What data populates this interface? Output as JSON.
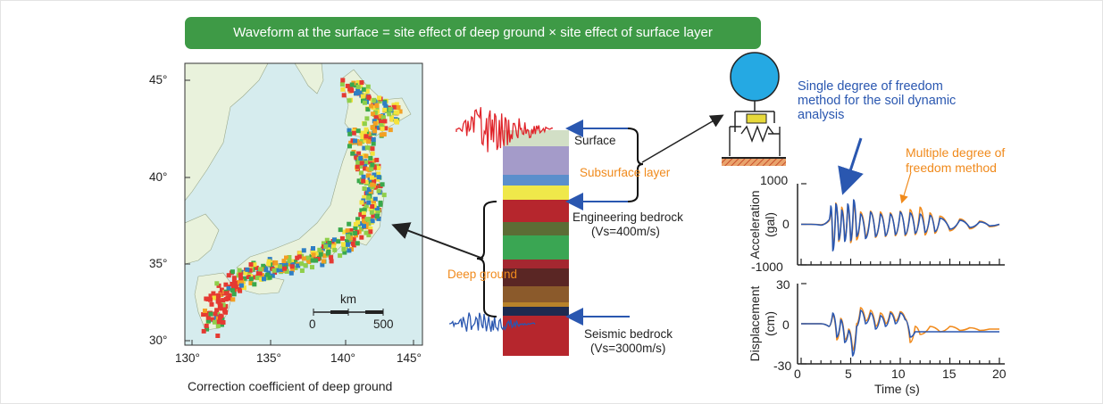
{
  "banner": {
    "text": "Waveform at the surface = site effect of deep ground × site effect of surface layer"
  },
  "map": {
    "lat_ticks": [
      "45°",
      "40°",
      "35°",
      "30°"
    ],
    "lon_ticks": [
      "130°",
      "135°",
      "140°",
      "145°"
    ],
    "scale_unit": "km",
    "scale_min": "0",
    "scale_max": "500",
    "caption": "Correction coefficient of deep ground",
    "colors": {
      "sea": "#d6ecee",
      "land": "#e9f2dc",
      "dot_palette": [
        "#e53a32",
        "#f3a023",
        "#f4e23c",
        "#8fcf4a",
        "#3aa84c",
        "#2f7fc4"
      ]
    }
  },
  "column": {
    "surface_label": "Surface",
    "subsurface_label": "Subsurface layer",
    "engineering_label": "Engineering bedrock",
    "engineering_vs": "(Vs=400m/s)",
    "deep_label": "Deep ground",
    "seismic_label": "Seismic bedrock",
    "seismic_vs": "(Vs=3000m/s)",
    "layer_colors": [
      "#d2dfc6",
      "#a49bc9",
      "#5b8fcc",
      "#efe84a",
      "#b6262d",
      "#5c6d35",
      "#3aa653",
      "#a42730",
      "#5a2624",
      "#8b5a2b",
      "#b8822a",
      "#1d2a50",
      "#b6262d"
    ]
  },
  "sdof": {
    "label": "Single degree of freedom method for the soil dynamic analysis",
    "label_lines": [
      "Single degree of freedom",
      "method for the soil dynamic",
      "analysis"
    ],
    "mdof_lines": [
      "Multiple degree of",
      "freedom method"
    ]
  },
  "accel_plot": {
    "ylabel_lines": [
      "Acceleration",
      "(gal)"
    ],
    "yticks": [
      "1000",
      "0",
      "-1000"
    ]
  },
  "disp_plot": {
    "ylabel_lines": [
      "Displacement",
      "(cm)"
    ],
    "yticks": [
      "30",
      "0",
      "-30"
    ],
    "xticks": [
      "0",
      "5",
      "10",
      "15",
      "20"
    ],
    "xlabel": "Time (s)"
  },
  "chart_data": [
    {
      "type": "line",
      "ylabel": "Acceleration (gal)",
      "xlim": [
        0,
        20
      ],
      "ylim": [
        -1000,
        1000
      ],
      "series": [
        {
          "name": "Single degree of freedom method",
          "color": "#2a57b0",
          "x": [
            0,
            1,
            2,
            2.8,
            3.0,
            3.2,
            3.5,
            3.8,
            4.1,
            4.4,
            4.7,
            5.0,
            5.3,
            5.6,
            6,
            6.5,
            7,
            7.5,
            8,
            8.5,
            9,
            9.5,
            10,
            10.5,
            11,
            11.5,
            12,
            12.5,
            13,
            13.5,
            14,
            15,
            16,
            17,
            18,
            19,
            20
          ],
          "y": [
            0,
            0,
            -20,
            100,
            450,
            -650,
            500,
            -380,
            350,
            -420,
            500,
            -400,
            600,
            -300,
            250,
            -350,
            300,
            -300,
            250,
            -280,
            250,
            -250,
            300,
            -250,
            280,
            -220,
            250,
            -200,
            220,
            -180,
            150,
            -120,
            100,
            -80,
            60,
            -40,
            0
          ]
        },
        {
          "name": "Multiple degree of freedom method",
          "color": "#f08a1c",
          "x": [
            0,
            1,
            2,
            2.8,
            3.0,
            3.2,
            3.5,
            3.8,
            4.1,
            4.4,
            4.7,
            5.0,
            5.3,
            5.6,
            6,
            6.5,
            7,
            7.5,
            8,
            8.5,
            9,
            9.5,
            10,
            10.5,
            11,
            11.5,
            12,
            12.5,
            13,
            13.5,
            14,
            15,
            16,
            17,
            18,
            19,
            20
          ],
          "y": [
            0,
            0,
            -10,
            80,
            350,
            -550,
            520,
            -420,
            420,
            -380,
            450,
            -450,
            520,
            -380,
            300,
            -300,
            320,
            -320,
            300,
            -300,
            280,
            -280,
            320,
            -280,
            360,
            -250,
            420,
            -260,
            280,
            -220,
            200,
            -160,
            130,
            -110,
            80,
            -60,
            0
          ]
        }
      ]
    },
    {
      "type": "line",
      "ylabel": "Displacement (cm)",
      "xlabel": "Time (s)",
      "xlim": [
        0,
        20
      ],
      "ylim": [
        -30,
        30
      ],
      "series": [
        {
          "name": "Single degree of freedom method",
          "color": "#2a57b0",
          "x": [
            0,
            1,
            2,
            2.8,
            3.2,
            3.6,
            4.0,
            4.4,
            4.8,
            5.2,
            5.6,
            6.0,
            6.5,
            7,
            7.5,
            8,
            8.5,
            9,
            9.5,
            10,
            10.5,
            11,
            11.5,
            12,
            13,
            14,
            15,
            16,
            17,
            18,
            19,
            20
          ],
          "y": [
            0,
            0,
            0,
            -2,
            8,
            -10,
            3,
            -14,
            -5,
            -24,
            -2,
            10,
            0,
            8,
            -4,
            6,
            -2,
            8,
            0,
            8,
            3,
            -10,
            -6,
            -6,
            -6,
            -6,
            -6,
            -6,
            -6,
            -6,
            -6,
            -6
          ]
        },
        {
          "name": "Multiple degree of freedom method",
          "color": "#f08a1c",
          "x": [
            0,
            1,
            2,
            2.8,
            3.2,
            3.6,
            4.0,
            4.4,
            4.8,
            5.2,
            5.6,
            6.0,
            6.5,
            7,
            7.5,
            8,
            8.5,
            9,
            9.5,
            10,
            10.5,
            11,
            11.5,
            12,
            13,
            14,
            15,
            16,
            17,
            18,
            19,
            20
          ],
          "y": [
            0,
            0,
            0,
            -2,
            7,
            -12,
            4,
            -12,
            -4,
            -20,
            0,
            12,
            2,
            10,
            -2,
            8,
            0,
            9,
            2,
            9,
            4,
            -14,
            -2,
            -8,
            -2,
            -6,
            -2,
            -5,
            -3,
            -5,
            -4,
            -4
          ]
        }
      ]
    }
  ]
}
